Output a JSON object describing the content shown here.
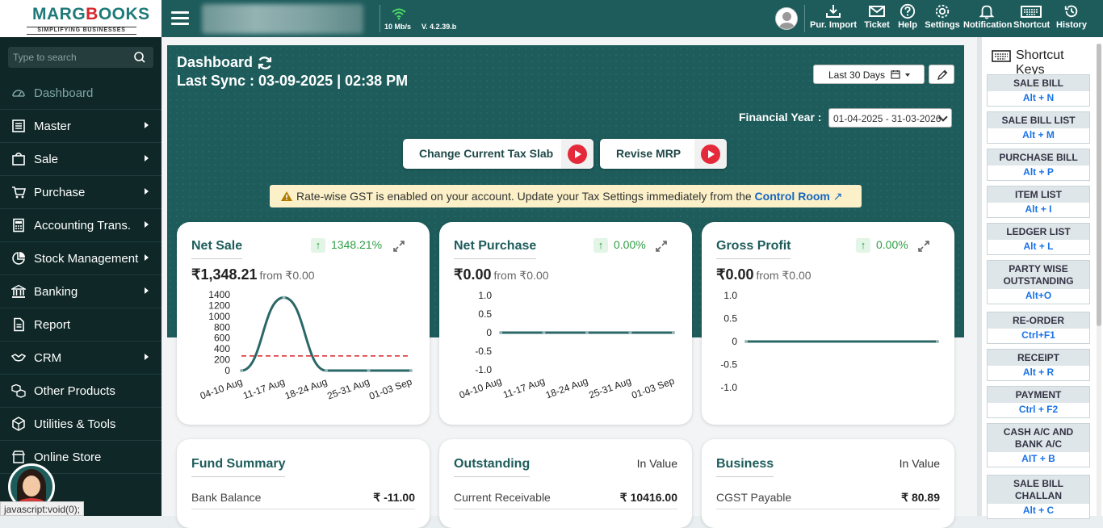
{
  "logo": {
    "text_before": "MARG",
    "text_red": "B",
    "text_after": "OOKS",
    "tagline": "SIMPLIFYING BUSINESSES"
  },
  "topbar": {
    "speed": "10 Mb/s",
    "version": "V. 4.2.39.b",
    "tools": [
      {
        "label": "Pur. Import",
        "icon": "download-icon"
      },
      {
        "label": "Ticket",
        "icon": "mail-icon"
      },
      {
        "label": "Help",
        "icon": "help-icon"
      },
      {
        "label": "Settings",
        "icon": "gear-icon"
      },
      {
        "label": "Notification",
        "icon": "bell-icon"
      },
      {
        "label": "Shortcut",
        "icon": "keyboard-icon"
      },
      {
        "label": "History",
        "icon": "history-icon"
      }
    ]
  },
  "sidebar": {
    "search_placeholder": "Type to search",
    "items": [
      {
        "label": "Dashboard",
        "icon": "dashboard-icon",
        "active": true,
        "submenu": false
      },
      {
        "label": "Master",
        "icon": "list-icon",
        "submenu": true
      },
      {
        "label": "Sale",
        "icon": "shopping-bag-icon",
        "submenu": true
      },
      {
        "label": "Purchase",
        "icon": "cart-icon",
        "submenu": true
      },
      {
        "label": "Accounting Trans.",
        "icon": "calculator-icon",
        "submenu": true
      },
      {
        "label": "Stock Management",
        "icon": "pie-icon",
        "submenu": true
      },
      {
        "label": "Banking",
        "icon": "bank-icon",
        "submenu": true
      },
      {
        "label": "Report",
        "icon": "report-icon",
        "submenu": false
      },
      {
        "label": "CRM",
        "icon": "handshake-icon",
        "submenu": true
      },
      {
        "label": "Other Products",
        "icon": "boxes-icon",
        "submenu": false
      },
      {
        "label": "Utilities & Tools",
        "icon": "cube-icon",
        "submenu": false
      },
      {
        "label": "Online Store",
        "icon": "store-icon",
        "submenu": false
      }
    ]
  },
  "header": {
    "title": "Dashboard",
    "sync_text": "Last Sync : 03-09-2025 | 02:38 PM",
    "range_label": "Last 30 Days",
    "fy_label": "Financial Year :",
    "fy_value": "01-04-2025 - 31-03-2026"
  },
  "actions": {
    "tax_slab": "Change Current Tax Slab",
    "revise_mrp": "Revise MRP"
  },
  "banner": {
    "text": "Rate-wise GST is enabled on your account. Update your Tax Settings immediately from the",
    "link": "Control Room",
    "link_arrow": "↗"
  },
  "cards": {
    "net_sale": {
      "title": "Net Sale",
      "pct": "1348.21%",
      "amount": "₹1,348.21",
      "from": "from ₹0.00"
    },
    "net_purchase": {
      "title": "Net Purchase",
      "pct": "0.00%",
      "amount": "₹0.00",
      "from": "from ₹0.00"
    },
    "gross_profit": {
      "title": "Gross Profit",
      "pct": "0.00%",
      "amount": "₹0.00",
      "from": "from ₹0.00"
    },
    "fund_summary": {
      "title": "Fund Summary",
      "row_label": "Bank Balance",
      "row_value": "₹ -11.00"
    },
    "outstanding": {
      "title": "Outstanding",
      "in_value": "In Value",
      "row_label": "Current Receivable",
      "row_value": "₹ 10416.00"
    },
    "business": {
      "title": "Business",
      "in_value": "In Value",
      "row_label": "CGST Payable",
      "row_value": "₹ 80.89"
    }
  },
  "chart_data": [
    {
      "type": "line",
      "categories": [
        "04-10 Aug",
        "11-17 Aug",
        "18-24 Aug",
        "25-31 Aug",
        "01-03 Sep"
      ],
      "series": [
        {
          "values": [
            0,
            1348.21,
            0,
            0,
            0
          ]
        }
      ],
      "reference_line": 269.64,
      "yticks": [
        "0",
        "200",
        "400",
        "600",
        "800",
        "1000",
        "1200",
        "1400"
      ],
      "ylim": [
        0,
        1400
      ],
      "colors": {
        "line": "#2b6767",
        "reference": "#d9262c"
      }
    },
    {
      "type": "line",
      "categories": [
        "04-10 Aug",
        "11-17 Aug",
        "18-24 Aug",
        "25-31 Aug",
        "01-03 Sep"
      ],
      "series": [
        {
          "values": [
            0,
            0,
            0,
            0,
            0
          ]
        }
      ],
      "yticks": [
        "-1.0",
        "-0.5",
        "0",
        "0.5",
        "1.0"
      ],
      "ylim": [
        -1,
        1
      ],
      "colors": {
        "line": "#2b6767"
      }
    },
    {
      "type": "line",
      "series": [
        {
          "values": [
            0,
            0
          ]
        }
      ],
      "yticks": [
        "-1.0",
        "-0.5",
        "0",
        "0.5",
        "1.0"
      ],
      "ylim": [
        -1,
        1
      ],
      "colors": {
        "line": "#2b6767"
      }
    }
  ],
  "shortcuts": {
    "title": "Shortcut Keys",
    "items": [
      {
        "name": "SALE BILL",
        "key": "Alt + N"
      },
      {
        "name": "SALE BILL LIST",
        "key": "Alt + M"
      },
      {
        "name": "PURCHASE BILL",
        "key": "Alt + P"
      },
      {
        "name": "ITEM LIST",
        "key": "Alt + I"
      },
      {
        "name": "LEDGER LIST",
        "key": "Alt + L"
      },
      {
        "name": "PARTY WISE OUTSTANDING",
        "key": "Alt+O"
      },
      {
        "name": "RE-ORDER",
        "key": "Ctrl+F1"
      },
      {
        "name": "RECEIPT",
        "key": "Alt + R"
      },
      {
        "name": "PAYMENT",
        "key": "Ctrl + F2"
      },
      {
        "name": "CASH A/C AND BANK A/C",
        "key": "AIT + B"
      },
      {
        "name": "SALE BILL CHALLAN",
        "key": "Alt + C"
      }
    ]
  },
  "status_bar": "javascript:void(0);"
}
